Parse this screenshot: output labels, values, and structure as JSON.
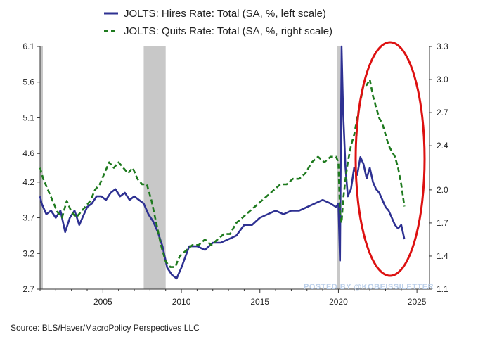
{
  "chart_data": {
    "type": "line",
    "title": "",
    "legend": {
      "placement": "top",
      "entries": [
        {
          "label": "JOLTS: Hires Rate: Total (SA, %, left scale)",
          "color": "#2e3192",
          "style": "solid"
        },
        {
          "label": "JOLTS: Quits Rate: Total (SA, %, right scale)",
          "color": "#1e7a1e",
          "style": "dashed"
        }
      ]
    },
    "x_axis": {
      "range": [
        2001.0,
        2025.8
      ],
      "ticks": [
        2005,
        2010,
        2015,
        2020,
        2025
      ],
      "tick_labels": [
        "2005",
        "2010",
        "2015",
        "2020",
        "2025"
      ]
    },
    "y_left": {
      "range": [
        2.7,
        6.1
      ],
      "ticks": [
        2.7,
        3.2,
        3.7,
        4.2,
        4.6,
        5.1,
        5.6,
        6.1
      ],
      "tick_labels": [
        "2.7",
        "3.2",
        "3.7",
        "4.2",
        "4.6",
        "5.1",
        "5.6",
        "6.1"
      ]
    },
    "y_right": {
      "range": [
        1.1,
        3.3
      ],
      "ticks": [
        1.1,
        1.4,
        1.7,
        2.0,
        2.4,
        2.7,
        3.0,
        3.3
      ],
      "tick_labels": [
        "1.1",
        "1.4",
        "1.7",
        "2.0",
        "2.4",
        "2.7",
        "3.0",
        "3.3"
      ]
    },
    "recessions": [
      [
        2001.0,
        2001.1
      ],
      [
        2007.6,
        2009.0
      ],
      [
        2019.9,
        2020.0
      ]
    ],
    "series": [
      {
        "name": "JOLTS: Hires Rate: Total (SA, %, left scale)",
        "axis": "left",
        "color": "#2e3192",
        "dash": "solid",
        "x": [
          2001.0,
          2001.1,
          2001.4,
          2001.7,
          2002.0,
          2002.3,
          2002.6,
          2002.9,
          2003.2,
          2003.5,
          2003.8,
          2004.0,
          2004.3,
          2004.6,
          2004.9,
          2005.2,
          2005.5,
          2005.8,
          2006.1,
          2006.4,
          2006.7,
          2007.0,
          2007.3,
          2007.6,
          2007.9,
          2008.2,
          2008.5,
          2008.8,
          2009.1,
          2009.4,
          2009.7,
          2010.0,
          2010.5,
          2011.0,
          2011.5,
          2012.0,
          2012.5,
          2013.0,
          2013.5,
          2014.0,
          2014.5,
          2015.0,
          2015.5,
          2016.0,
          2016.5,
          2017.0,
          2017.5,
          2018.0,
          2018.5,
          2019.0,
          2019.5,
          2019.85,
          2020.0,
          2020.1,
          2020.2,
          2020.3,
          2020.45,
          2020.6,
          2020.8,
          2021.0,
          2021.2,
          2021.4,
          2021.6,
          2021.8,
          2022.0,
          2022.2,
          2022.4,
          2022.6,
          2022.8,
          2023.0,
          2023.2,
          2023.4,
          2023.6,
          2023.8,
          2024.0,
          2024.2
        ],
        "y": [
          4.0,
          3.9,
          3.75,
          3.8,
          3.7,
          3.8,
          3.5,
          3.7,
          3.8,
          3.6,
          3.75,
          3.85,
          3.9,
          4.0,
          4.0,
          3.95,
          4.05,
          4.1,
          4.0,
          4.05,
          3.95,
          4.0,
          3.95,
          3.9,
          3.75,
          3.65,
          3.5,
          3.3,
          3.0,
          2.9,
          2.85,
          3.0,
          3.3,
          3.3,
          3.25,
          3.35,
          3.35,
          3.4,
          3.45,
          3.6,
          3.6,
          3.7,
          3.75,
          3.8,
          3.75,
          3.8,
          3.8,
          3.85,
          3.9,
          3.95,
          3.9,
          3.85,
          3.9,
          3.1,
          6.1,
          5.2,
          4.4,
          4.0,
          4.1,
          4.4,
          4.3,
          4.55,
          4.45,
          4.25,
          4.4,
          4.2,
          4.1,
          4.05,
          3.95,
          3.85,
          3.8,
          3.7,
          3.6,
          3.55,
          3.6,
          3.4
        ]
      },
      {
        "name": "JOLTS: Quits Rate: Total (SA, %, right scale)",
        "axis": "right",
        "color": "#1e7a1e",
        "dash": "dashed",
        "x": [
          2001.0,
          2001.2,
          2001.5,
          2001.8,
          2002.1,
          2002.4,
          2002.7,
          2003.0,
          2003.3,
          2003.6,
          2003.9,
          2004.2,
          2004.5,
          2004.8,
          2005.1,
          2005.4,
          2005.7,
          2006.0,
          2006.3,
          2006.6,
          2006.9,
          2007.2,
          2007.5,
          2007.8,
          2008.1,
          2008.4,
          2008.7,
          2009.0,
          2009.3,
          2009.6,
          2009.9,
          2010.3,
          2010.7,
          2011.1,
          2011.5,
          2011.9,
          2012.3,
          2012.7,
          2013.1,
          2013.5,
          2013.9,
          2014.3,
          2014.7,
          2015.1,
          2015.5,
          2015.9,
          2016.3,
          2016.7,
          2017.1,
          2017.5,
          2017.9,
          2018.3,
          2018.7,
          2019.1,
          2019.5,
          2019.85,
          2020.0,
          2020.1,
          2020.2,
          2020.3,
          2020.45,
          2020.6,
          2020.8,
          2021.0,
          2021.2,
          2021.4,
          2021.6,
          2021.8,
          2022.0,
          2022.2,
          2022.4,
          2022.6,
          2022.8,
          2023.0,
          2023.2,
          2023.4,
          2023.6,
          2023.8,
          2024.0,
          2024.2
        ],
        "y": [
          2.2,
          2.1,
          2.0,
          1.9,
          1.8,
          1.75,
          1.9,
          1.8,
          1.75,
          1.8,
          1.85,
          1.9,
          2.0,
          2.05,
          2.15,
          2.25,
          2.2,
          2.25,
          2.2,
          2.15,
          2.2,
          2.1,
          2.05,
          2.05,
          1.9,
          1.7,
          1.5,
          1.35,
          1.3,
          1.3,
          1.4,
          1.45,
          1.5,
          1.5,
          1.55,
          1.5,
          1.55,
          1.6,
          1.6,
          1.7,
          1.75,
          1.8,
          1.85,
          1.9,
          1.95,
          2.0,
          2.05,
          2.05,
          2.1,
          2.1,
          2.15,
          2.25,
          2.3,
          2.25,
          2.3,
          2.3,
          2.25,
          1.8,
          1.7,
          1.9,
          2.1,
          2.25,
          2.4,
          2.5,
          2.65,
          2.8,
          2.95,
          2.95,
          3.0,
          2.85,
          2.75,
          2.65,
          2.6,
          2.5,
          2.4,
          2.35,
          2.3,
          2.2,
          2.05,
          1.85
        ]
      }
    ]
  },
  "annotations": {
    "watermark": "POSTED BY @KOBEISSILETTER",
    "source": "Source:  BLS/Haver/MacroPolicy Perspectives LLC",
    "highlight_ellipse_color": "#dd1111"
  }
}
